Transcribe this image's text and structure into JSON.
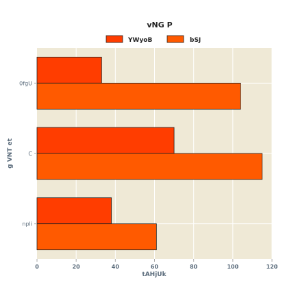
{
  "chart_data": {
    "type": "bar",
    "orientation": "horizontal",
    "title": "vNG P",
    "xlabel": "tAHjUk",
    "ylabel": "g VNT et",
    "categories": [
      "0fgU",
      "C",
      "npli"
    ],
    "series": [
      {
        "name": "YWyoB",
        "color": "#ff3d00",
        "values": [
          33,
          70,
          38
        ]
      },
      {
        "name": "bSJ",
        "color": "#ff5a00",
        "values": [
          104,
          115,
          61
        ]
      }
    ],
    "xlim": [
      0,
      120
    ],
    "xticks": [
      0,
      20,
      40,
      60,
      80,
      100,
      120
    ],
    "grid": true,
    "legend_position": "top-center",
    "plot_background": "#efe9d6"
  }
}
